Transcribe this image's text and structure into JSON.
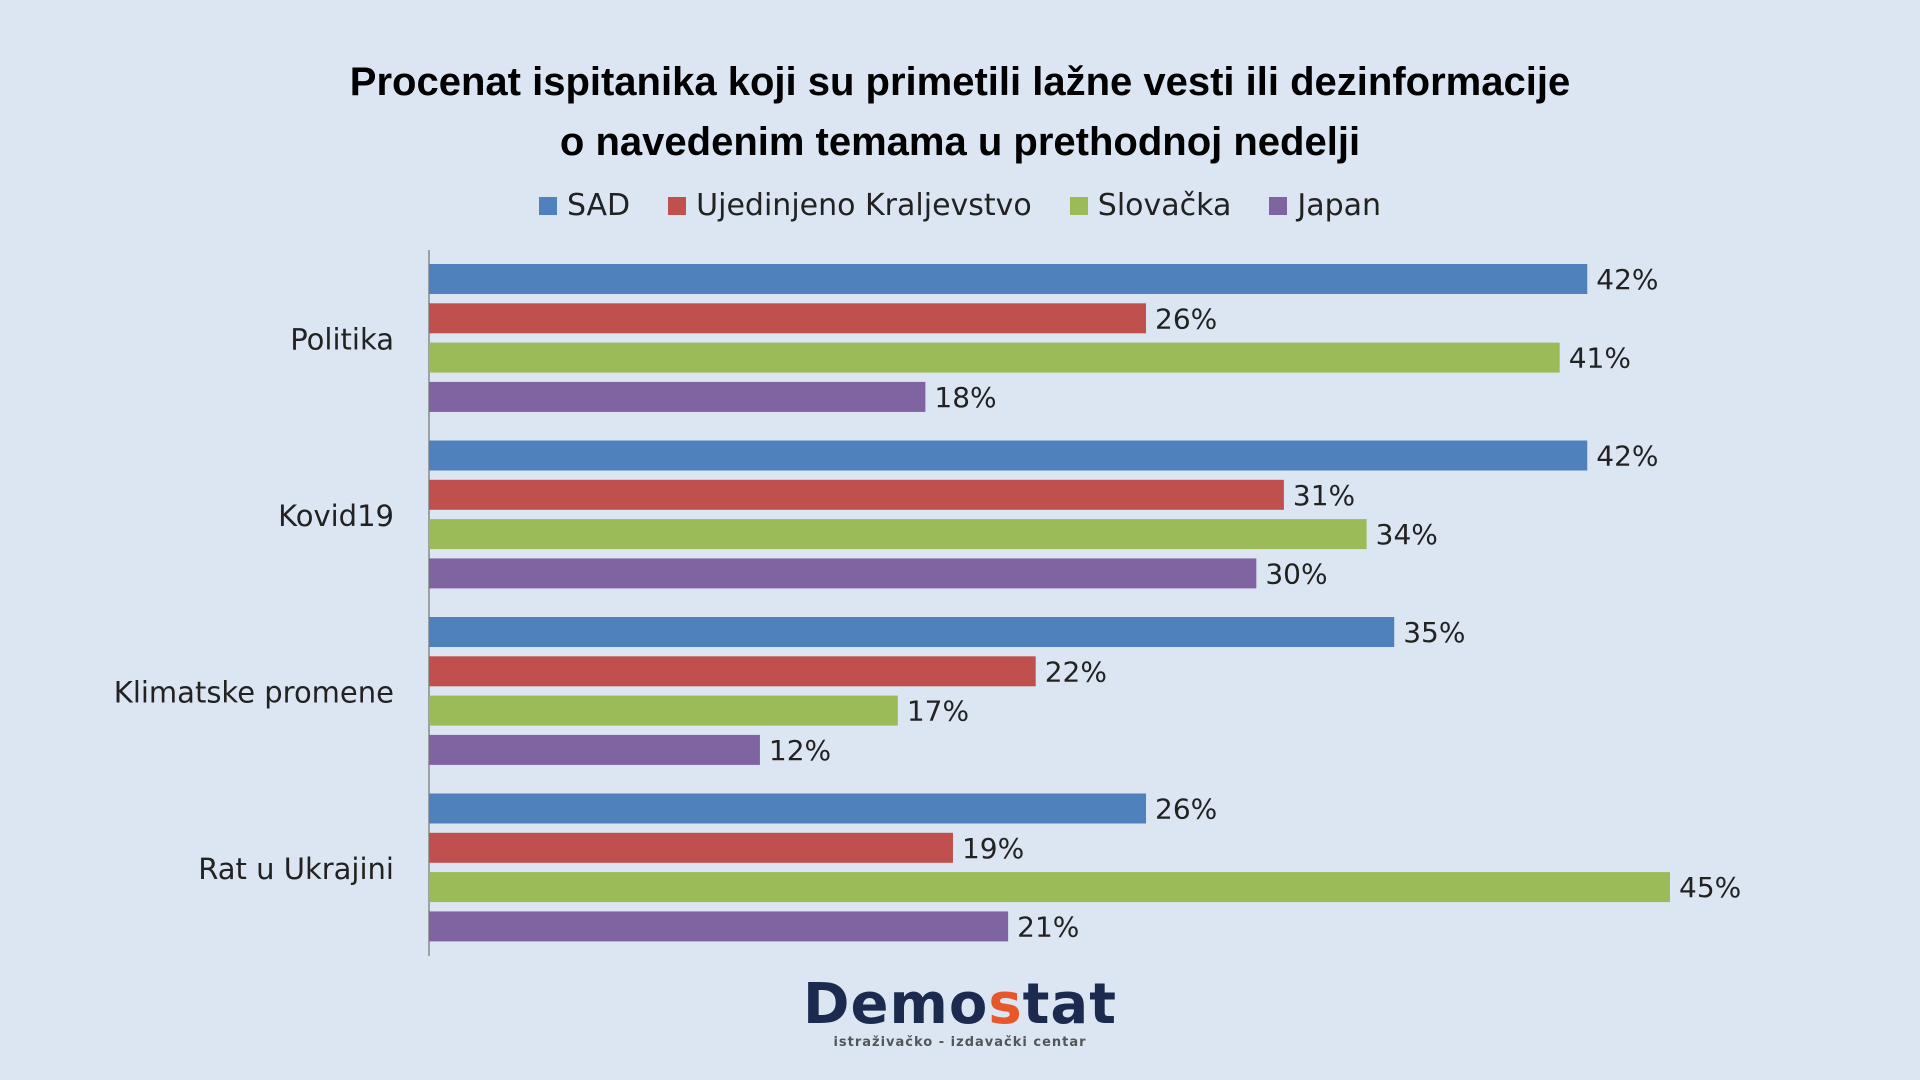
{
  "chart_data": {
    "type": "bar",
    "orientation": "horizontal",
    "title_lines": [
      "Procenat ispitanika koji su primetili lažne vesti ili dezinformacije",
      "o navedenim temama u prethodnoj nedelji"
    ],
    "categories": [
      "Politika",
      "Kovid19",
      "Klimatske promene",
      "Rat u Ukrajini"
    ],
    "series": [
      {
        "name": "SAD",
        "color": "#4f81bd",
        "values": [
          42,
          42,
          35,
          26
        ]
      },
      {
        "name": "Ujedinjeno Kraljevstvo",
        "color": "#c0504d",
        "values": [
          26,
          31,
          22,
          19
        ]
      },
      {
        "name": "Slovačka",
        "color": "#9bbb59",
        "values": [
          41,
          34,
          17,
          45
        ]
      },
      {
        "name": "Japan",
        "color": "#8064a2",
        "values": [
          18,
          30,
          12,
          21
        ]
      }
    ],
    "value_suffix": "%",
    "xlim": [
      0,
      45
    ],
    "grid": false,
    "legend_position": "top"
  },
  "logo": {
    "word_start": "Demo",
    "word_accent": "s",
    "word_end": "tat",
    "subtitle": "istraživačko - izdavački  centar"
  }
}
